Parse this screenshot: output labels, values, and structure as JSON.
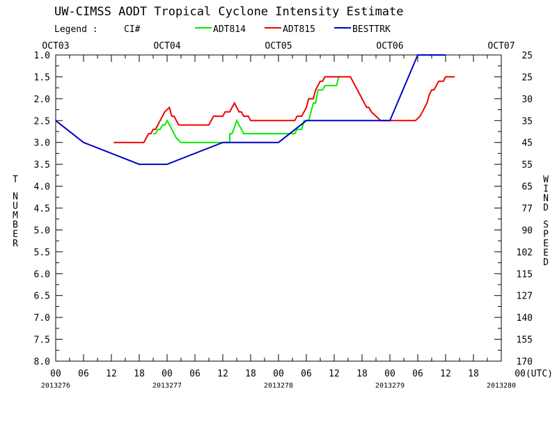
{
  "chart_data": {
    "type": "line",
    "title": "UW-CIMSS AODT Tropical Cyclone Intensity Estimate",
    "legend_label": "Legend :",
    "legend_subject": "CI#",
    "y_left_label": "T NUMBER",
    "y_right_label": "WIND SPEED",
    "x_range_hours": [
      0,
      96
    ],
    "ylim": [
      1.0,
      8.0
    ],
    "y_inverted": true,
    "grid": false,
    "legend_placement": "top",
    "y_ticks": [
      {
        "v": 1.0,
        "l": "1.0"
      },
      {
        "v": 1.5,
        "l": "1.5"
      },
      {
        "v": 2.0,
        "l": "2.0"
      },
      {
        "v": 2.5,
        "l": "2.5"
      },
      {
        "v": 3.0,
        "l": "3.0"
      },
      {
        "v": 3.5,
        "l": "3.5"
      },
      {
        "v": 4.0,
        "l": "4.0"
      },
      {
        "v": 4.5,
        "l": "4.5"
      },
      {
        "v": 5.0,
        "l": "5.0"
      },
      {
        "v": 5.5,
        "l": "5.5"
      },
      {
        "v": 6.0,
        "l": "6.0"
      },
      {
        "v": 6.5,
        "l": "6.5"
      },
      {
        "v": 7.0,
        "l": "7.0"
      },
      {
        "v": 7.5,
        "l": "7.5"
      },
      {
        "v": 8.0,
        "l": "8.0"
      }
    ],
    "wind_ticks": [
      {
        "v": 1.0,
        "l": "25"
      },
      {
        "v": 1.5,
        "l": "25"
      },
      {
        "v": 2.0,
        "l": "30"
      },
      {
        "v": 2.5,
        "l": "35"
      },
      {
        "v": 3.0,
        "l": "45"
      },
      {
        "v": 3.5,
        "l": "55"
      },
      {
        "v": 4.0,
        "l": "65"
      },
      {
        "v": 4.5,
        "l": "77"
      },
      {
        "v": 5.0,
        "l": "90"
      },
      {
        "v": 5.5,
        "l": "102"
      },
      {
        "v": 6.0,
        "l": "115"
      },
      {
        "v": 6.5,
        "l": "127"
      },
      {
        "v": 7.0,
        "l": "140"
      },
      {
        "v": 7.5,
        "l": "155"
      },
      {
        "v": 8.0,
        "l": "170"
      }
    ],
    "x_ticks": [
      {
        "h": 0,
        "l": "00"
      },
      {
        "h": 6,
        "l": "06"
      },
      {
        "h": 12,
        "l": "12"
      },
      {
        "h": 18,
        "l": "18"
      },
      {
        "h": 24,
        "l": "00"
      },
      {
        "h": 30,
        "l": "06"
      },
      {
        "h": 36,
        "l": "12"
      },
      {
        "h": 42,
        "l": "18"
      },
      {
        "h": 48,
        "l": "00"
      },
      {
        "h": 54,
        "l": "06"
      },
      {
        "h": 60,
        "l": "12"
      },
      {
        "h": 66,
        "l": "18"
      },
      {
        "h": 72,
        "l": "00"
      },
      {
        "h": 78,
        "l": "06"
      },
      {
        "h": 84,
        "l": "12"
      },
      {
        "h": 90,
        "l": "18"
      },
      {
        "h": 96,
        "l": "00(UTC)"
      }
    ],
    "date_labels": [
      {
        "h": 0,
        "l": "2013276"
      },
      {
        "h": 24,
        "l": "2013277"
      },
      {
        "h": 48,
        "l": "2013278"
      },
      {
        "h": 72,
        "l": "2013279"
      },
      {
        "h": 96,
        "l": "2013280"
      }
    ],
    "month_labels": [
      {
        "h": 0,
        "l": "OCT03"
      },
      {
        "h": 24,
        "l": "OCT04"
      },
      {
        "h": 48,
        "l": "OCT05"
      },
      {
        "h": 72,
        "l": "OCT06"
      },
      {
        "h": 96,
        "l": "OCT07"
      }
    ],
    "series": [
      {
        "name": "ADT814",
        "color": "#00ee00",
        "points": [
          [
            21.0,
            2.8
          ],
          [
            21.5,
            2.8
          ],
          [
            22.0,
            2.7
          ],
          [
            22.5,
            2.7
          ],
          [
            23.0,
            2.6
          ],
          [
            23.5,
            2.6
          ],
          [
            24.0,
            2.5
          ],
          [
            25.0,
            2.7
          ],
          [
            26.0,
            2.9
          ],
          [
            27.0,
            3.0
          ],
          [
            35.0,
            3.0
          ],
          [
            36.0,
            3.0
          ],
          [
            37.5,
            3.0
          ],
          [
            37.5,
            2.8
          ],
          [
            38.0,
            2.8
          ],
          [
            39.0,
            2.5
          ],
          [
            40.0,
            2.7
          ],
          [
            40.5,
            2.8
          ],
          [
            48.0,
            2.8
          ],
          [
            51.5,
            2.8
          ],
          [
            52.0,
            2.7
          ],
          [
            53.0,
            2.7
          ],
          [
            53.5,
            2.5
          ],
          [
            54.5,
            2.5
          ],
          [
            55.0,
            2.3
          ],
          [
            55.5,
            2.1
          ],
          [
            56.0,
            2.1
          ],
          [
            56.5,
            1.8
          ],
          [
            57.5,
            1.8
          ],
          [
            58.0,
            1.7
          ],
          [
            60.5,
            1.7
          ],
          [
            61.0,
            1.5
          ],
          [
            61.5,
            1.5
          ]
        ]
      },
      {
        "name": "ADT815",
        "color": "#ee0000",
        "points": [
          [
            12.5,
            3.0
          ],
          [
            19.0,
            3.0
          ],
          [
            19.5,
            2.9
          ],
          [
            20.0,
            2.8
          ],
          [
            20.5,
            2.8
          ],
          [
            21.0,
            2.7
          ],
          [
            21.5,
            2.7
          ],
          [
            22.0,
            2.6
          ],
          [
            22.5,
            2.5
          ],
          [
            23.0,
            2.4
          ],
          [
            23.5,
            2.3
          ],
          [
            24.5,
            2.2
          ],
          [
            25.0,
            2.4
          ],
          [
            25.5,
            2.4
          ],
          [
            26.0,
            2.5
          ],
          [
            26.5,
            2.6
          ],
          [
            33.0,
            2.6
          ],
          [
            33.5,
            2.5
          ],
          [
            34.0,
            2.4
          ],
          [
            36.0,
            2.4
          ],
          [
            36.5,
            2.3
          ],
          [
            37.5,
            2.3
          ],
          [
            38.0,
            2.2
          ],
          [
            38.5,
            2.1
          ],
          [
            39.0,
            2.2
          ],
          [
            39.5,
            2.3
          ],
          [
            40.0,
            2.3
          ],
          [
            40.5,
            2.4
          ],
          [
            41.5,
            2.4
          ],
          [
            42.0,
            2.5
          ],
          [
            51.5,
            2.5
          ],
          [
            52.0,
            2.4
          ],
          [
            53.0,
            2.4
          ],
          [
            53.5,
            2.3
          ],
          [
            54.0,
            2.2
          ],
          [
            54.5,
            2.0
          ],
          [
            55.5,
            2.0
          ],
          [
            56.0,
            1.8
          ],
          [
            56.5,
            1.7
          ],
          [
            57.0,
            1.6
          ],
          [
            57.5,
            1.6
          ],
          [
            58.0,
            1.5
          ],
          [
            63.5,
            1.5
          ],
          [
            64.5,
            1.7
          ],
          [
            66.0,
            2.0
          ],
          [
            67.0,
            2.2
          ],
          [
            67.5,
            2.2
          ],
          [
            68.0,
            2.3
          ],
          [
            69.0,
            2.4
          ],
          [
            70.0,
            2.5
          ],
          [
            70.5,
            2.5
          ],
          [
            77.5,
            2.5
          ],
          [
            78.5,
            2.4
          ],
          [
            79.0,
            2.3
          ],
          [
            79.5,
            2.2
          ],
          [
            80.0,
            2.1
          ],
          [
            80.5,
            1.9
          ],
          [
            81.0,
            1.8
          ],
          [
            81.5,
            1.8
          ],
          [
            82.0,
            1.7
          ],
          [
            82.5,
            1.6
          ],
          [
            83.5,
            1.6
          ],
          [
            84.0,
            1.5
          ],
          [
            86.0,
            1.5
          ]
        ]
      },
      {
        "name": "BESTTRK",
        "color": "#0000cc",
        "points": [
          [
            0,
            2.5
          ],
          [
            6,
            3.0
          ],
          [
            18,
            3.5
          ],
          [
            24,
            3.5
          ],
          [
            36,
            3.0
          ],
          [
            48,
            3.0
          ],
          [
            54,
            2.5
          ],
          [
            72,
            2.5
          ],
          [
            78,
            1.0
          ],
          [
            84,
            1.0
          ]
        ]
      }
    ]
  }
}
